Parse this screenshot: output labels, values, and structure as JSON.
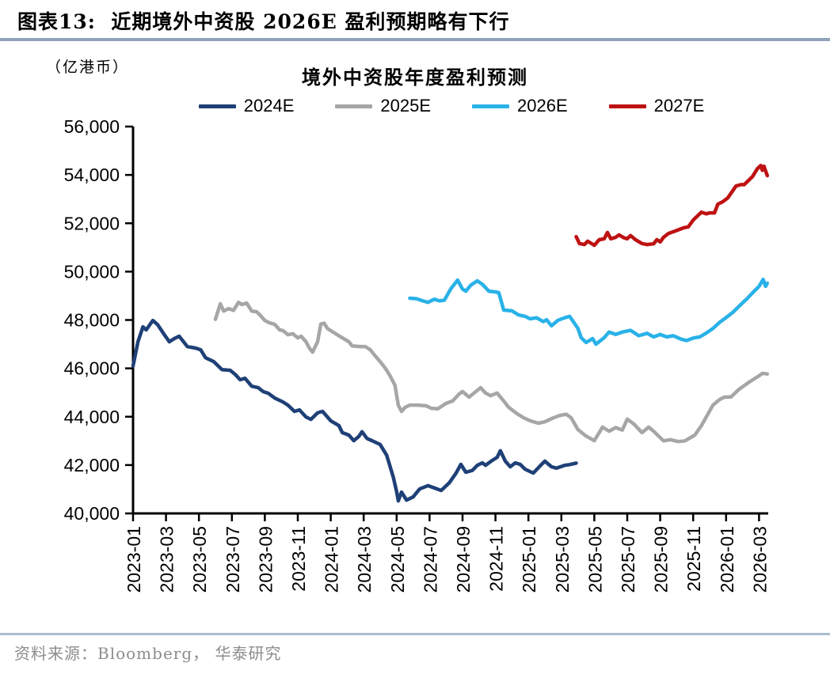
{
  "header": {
    "title": "图表13:  近期境外中资股 2026E 盈利预期略有下行"
  },
  "chart": {
    "unit_label": "（亿港币）"
  },
  "source": {
    "text": "资料来源：Bloomberg， 华泰研究"
  },
  "style": {
    "header_rule": "#8FA3BB",
    "footer_rule": "#ABBDCD",
    "axis_color": "#000000",
    "source_text_color": "#8C8C8C"
  },
  "chart_data": {
    "type": "line",
    "title": "境外中资股年度盈利预测",
    "unit": "亿港币",
    "legend_position": "top",
    "grid": false,
    "y_axis": {
      "min": 40000,
      "max": 56000,
      "tick_step": 2000
    },
    "x_axis": {
      "months_per_tick": 2,
      "tick_labels": [
        "2023-01",
        "2023-03",
        "2023-05",
        "2023-07",
        "2023-09",
        "2023-11",
        "2024-01",
        "2024-03",
        "2024-05",
        "2024-07",
        "2024-09",
        "2024-11",
        "2025-01",
        "2025-03",
        "2025-05",
        "2025-07",
        "2025-09",
        "2025-11",
        "2026-01",
        "2026-03"
      ]
    },
    "series": [
      {
        "name": "2024E",
        "color": "#1F4077",
        "points": [
          [
            0,
            46100
          ],
          [
            0.3,
            47100
          ],
          [
            0.6,
            47720
          ],
          [
            0.8,
            47590
          ],
          [
            1.2,
            47980
          ],
          [
            1.5,
            47800
          ],
          [
            1.9,
            47390
          ],
          [
            2.2,
            47100
          ],
          [
            2.5,
            47230
          ],
          [
            2.8,
            47330
          ],
          [
            3.3,
            46900
          ],
          [
            3.8,
            46840
          ],
          [
            4.1,
            46770
          ],
          [
            4.4,
            46440
          ],
          [
            4.9,
            46280
          ],
          [
            5.4,
            45950
          ],
          [
            5.9,
            45920
          ],
          [
            6.2,
            45750
          ],
          [
            6.5,
            45530
          ],
          [
            6.8,
            45590
          ],
          [
            7.2,
            45260
          ],
          [
            7.6,
            45200
          ],
          [
            7.9,
            45040
          ],
          [
            8.2,
            44970
          ],
          [
            8.6,
            44770
          ],
          [
            9.1,
            44610
          ],
          [
            9.4,
            44480
          ],
          [
            9.8,
            44220
          ],
          [
            10.1,
            44280
          ],
          [
            10.5,
            43990
          ],
          [
            10.8,
            43890
          ],
          [
            11.2,
            44160
          ],
          [
            11.5,
            44220
          ],
          [
            12.0,
            43830
          ],
          [
            12.5,
            43630
          ],
          [
            12.7,
            43340
          ],
          [
            13.1,
            43240
          ],
          [
            13.4,
            43010
          ],
          [
            13.7,
            43180
          ],
          [
            13.9,
            43380
          ],
          [
            14.2,
            43100
          ],
          [
            14.5,
            43010
          ],
          [
            15.0,
            42850
          ],
          [
            15.4,
            42400
          ],
          [
            15.8,
            41500
          ],
          [
            16.0,
            40900
          ],
          [
            16.1,
            40520
          ],
          [
            16.3,
            40880
          ],
          [
            16.6,
            40550
          ],
          [
            17.0,
            40680
          ],
          [
            17.4,
            41010
          ],
          [
            17.9,
            41150
          ],
          [
            18.3,
            41050
          ],
          [
            18.7,
            40950
          ],
          [
            19.2,
            41270
          ],
          [
            19.6,
            41660
          ],
          [
            19.9,
            42030
          ],
          [
            20.2,
            41700
          ],
          [
            20.6,
            41780
          ],
          [
            20.9,
            41990
          ],
          [
            21.2,
            42090
          ],
          [
            21.4,
            41990
          ],
          [
            21.8,
            42190
          ],
          [
            22.1,
            42320
          ],
          [
            22.3,
            42590
          ],
          [
            22.6,
            42160
          ],
          [
            22.9,
            41930
          ],
          [
            23.2,
            42090
          ],
          [
            23.5,
            42030
          ],
          [
            23.8,
            41830
          ],
          [
            24.3,
            41670
          ],
          [
            24.8,
            42030
          ],
          [
            25.0,
            42160
          ],
          [
            25.4,
            41930
          ],
          [
            25.7,
            41870
          ],
          [
            26.2,
            41990
          ],
          [
            26.5,
            42020
          ],
          [
            26.9,
            42080
          ]
        ]
      },
      {
        "name": "2025E",
        "color": "#A6A6A6",
        "points": [
          [
            5.0,
            48030
          ],
          [
            5.3,
            48670
          ],
          [
            5.5,
            48370
          ],
          [
            5.8,
            48470
          ],
          [
            6.1,
            48400
          ],
          [
            6.4,
            48730
          ],
          [
            6.6,
            48640
          ],
          [
            6.9,
            48700
          ],
          [
            7.2,
            48370
          ],
          [
            7.5,
            48340
          ],
          [
            7.7,
            48210
          ],
          [
            8.0,
            47980
          ],
          [
            8.3,
            47880
          ],
          [
            8.6,
            47820
          ],
          [
            8.9,
            47590
          ],
          [
            9.1,
            47560
          ],
          [
            9.4,
            47390
          ],
          [
            9.7,
            47430
          ],
          [
            10.0,
            47260
          ],
          [
            10.2,
            47330
          ],
          [
            10.5,
            47100
          ],
          [
            10.7,
            46840
          ],
          [
            10.9,
            46670
          ],
          [
            11.2,
            47100
          ],
          [
            11.4,
            47830
          ],
          [
            11.6,
            47870
          ],
          [
            11.8,
            47650
          ],
          [
            12.3,
            47430
          ],
          [
            12.7,
            47260
          ],
          [
            13.1,
            47100
          ],
          [
            13.3,
            46930
          ],
          [
            13.8,
            46900
          ],
          [
            14.1,
            46900
          ],
          [
            14.4,
            46770
          ],
          [
            14.7,
            46510
          ],
          [
            15.0,
            46280
          ],
          [
            15.3,
            46020
          ],
          [
            15.6,
            45690
          ],
          [
            15.9,
            45300
          ],
          [
            16.1,
            44480
          ],
          [
            16.3,
            44220
          ],
          [
            16.5,
            44380
          ],
          [
            16.8,
            44480
          ],
          [
            17.3,
            44480
          ],
          [
            17.8,
            44450
          ],
          [
            18.1,
            44350
          ],
          [
            18.5,
            44330
          ],
          [
            19.0,
            44550
          ],
          [
            19.4,
            44650
          ],
          [
            19.8,
            44940
          ],
          [
            20.0,
            45040
          ],
          [
            20.4,
            44810
          ],
          [
            20.7,
            44980
          ],
          [
            21.1,
            45200
          ],
          [
            21.4,
            44980
          ],
          [
            21.7,
            44870
          ],
          [
            22.1,
            44980
          ],
          [
            22.5,
            44650
          ],
          [
            22.8,
            44390
          ],
          [
            23.3,
            44130
          ],
          [
            23.7,
            43960
          ],
          [
            24.1,
            43830
          ],
          [
            24.6,
            43730
          ],
          [
            25.0,
            43790
          ],
          [
            25.5,
            43950
          ],
          [
            25.9,
            44050
          ],
          [
            26.3,
            44100
          ],
          [
            26.6,
            43950
          ],
          [
            27.0,
            43470
          ],
          [
            27.5,
            43200
          ],
          [
            28.0,
            43010
          ],
          [
            28.5,
            43570
          ],
          [
            28.9,
            43400
          ],
          [
            29.3,
            43550
          ],
          [
            29.7,
            43450
          ],
          [
            30.0,
            43900
          ],
          [
            30.4,
            43700
          ],
          [
            30.9,
            43340
          ],
          [
            31.3,
            43570
          ],
          [
            31.6,
            43400
          ],
          [
            32.2,
            43000
          ],
          [
            32.6,
            43050
          ],
          [
            33.1,
            42970
          ],
          [
            33.5,
            43000
          ],
          [
            34.1,
            43240
          ],
          [
            34.5,
            43630
          ],
          [
            35.2,
            44480
          ],
          [
            35.6,
            44710
          ],
          [
            35.9,
            44810
          ],
          [
            36.3,
            44820
          ],
          [
            36.8,
            45140
          ],
          [
            37.4,
            45430
          ],
          [
            38.0,
            45690
          ],
          [
            38.2,
            45790
          ],
          [
            38.5,
            45770
          ]
        ]
      },
      {
        "name": "2026E",
        "color": "#29B2E8",
        "points": [
          [
            16.8,
            48900
          ],
          [
            17.2,
            48880
          ],
          [
            17.6,
            48790
          ],
          [
            17.9,
            48730
          ],
          [
            18.3,
            48860
          ],
          [
            18.6,
            48790
          ],
          [
            18.9,
            48820
          ],
          [
            19.3,
            49300
          ],
          [
            19.7,
            49650
          ],
          [
            20.0,
            49280
          ],
          [
            20.2,
            49190
          ],
          [
            20.5,
            49440
          ],
          [
            20.9,
            49620
          ],
          [
            21.2,
            49480
          ],
          [
            21.6,
            49190
          ],
          [
            22.0,
            49160
          ],
          [
            22.2,
            49130
          ],
          [
            22.5,
            48410
          ],
          [
            23.0,
            48380
          ],
          [
            23.4,
            48210
          ],
          [
            23.8,
            48150
          ],
          [
            24.1,
            48050
          ],
          [
            24.5,
            48090
          ],
          [
            24.9,
            47930
          ],
          [
            25.1,
            48010
          ],
          [
            25.4,
            47760
          ],
          [
            25.8,
            47990
          ],
          [
            26.2,
            48090
          ],
          [
            26.5,
            48150
          ],
          [
            27.0,
            47660
          ],
          [
            27.2,
            47270
          ],
          [
            27.5,
            47070
          ],
          [
            27.9,
            47230
          ],
          [
            28.1,
            47000
          ],
          [
            28.6,
            47270
          ],
          [
            28.9,
            47500
          ],
          [
            29.3,
            47400
          ],
          [
            29.7,
            47500
          ],
          [
            30.2,
            47570
          ],
          [
            30.7,
            47350
          ],
          [
            31.2,
            47450
          ],
          [
            31.6,
            47300
          ],
          [
            32.0,
            47400
          ],
          [
            32.4,
            47300
          ],
          [
            32.8,
            47350
          ],
          [
            33.3,
            47200
          ],
          [
            33.6,
            47150
          ],
          [
            34.0,
            47250
          ],
          [
            34.4,
            47300
          ],
          [
            34.8,
            47460
          ],
          [
            35.2,
            47650
          ],
          [
            35.6,
            47900
          ],
          [
            36.0,
            48100
          ],
          [
            36.4,
            48310
          ],
          [
            36.9,
            48640
          ],
          [
            37.3,
            48900
          ],
          [
            37.7,
            49190
          ],
          [
            38.0,
            49390
          ],
          [
            38.25,
            49680
          ],
          [
            38.4,
            49390
          ],
          [
            38.5,
            49520
          ]
        ]
      },
      {
        "name": "2027E",
        "color": "#BE1212",
        "points": [
          [
            26.9,
            51450
          ],
          [
            27.1,
            51160
          ],
          [
            27.4,
            51120
          ],
          [
            27.6,
            51260
          ],
          [
            28.0,
            51090
          ],
          [
            28.3,
            51320
          ],
          [
            28.6,
            51360
          ],
          [
            28.8,
            51620
          ],
          [
            29.0,
            51360
          ],
          [
            29.3,
            51420
          ],
          [
            29.5,
            51520
          ],
          [
            29.8,
            51400
          ],
          [
            30.0,
            51360
          ],
          [
            30.2,
            51490
          ],
          [
            30.5,
            51320
          ],
          [
            30.9,
            51160
          ],
          [
            31.2,
            51120
          ],
          [
            31.6,
            51150
          ],
          [
            31.8,
            51320
          ],
          [
            32.0,
            51230
          ],
          [
            32.2,
            51420
          ],
          [
            32.5,
            51580
          ],
          [
            32.8,
            51650
          ],
          [
            33.0,
            51700
          ],
          [
            33.4,
            51810
          ],
          [
            33.7,
            51850
          ],
          [
            34.0,
            52130
          ],
          [
            34.5,
            52460
          ],
          [
            34.8,
            52390
          ],
          [
            35.0,
            52430
          ],
          [
            35.3,
            52430
          ],
          [
            35.5,
            52790
          ],
          [
            35.8,
            52890
          ],
          [
            36.1,
            53050
          ],
          [
            36.6,
            53540
          ],
          [
            36.9,
            53600
          ],
          [
            37.1,
            53600
          ],
          [
            37.6,
            53930
          ],
          [
            37.9,
            54260
          ],
          [
            38.1,
            54390
          ],
          [
            38.2,
            54190
          ],
          [
            38.3,
            54360
          ],
          [
            38.5,
            53970
          ]
        ]
      }
    ]
  }
}
